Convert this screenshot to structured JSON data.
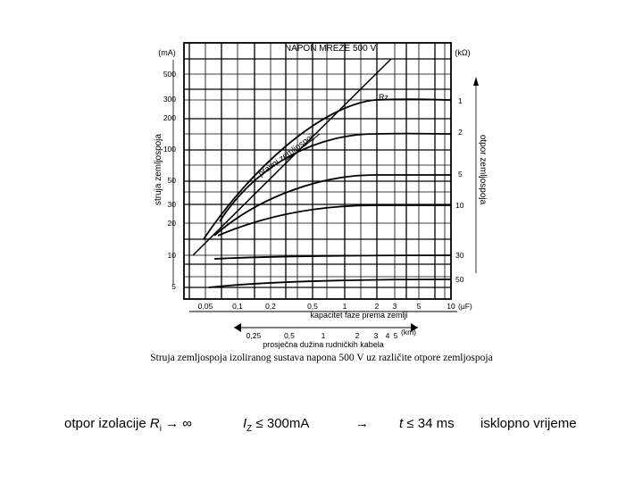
{
  "figure": {
    "top_title": "NAPON MREŽE 500 V",
    "left_unit": "(mA)",
    "right_unit": "(kΩ)",
    "left_axis_label": "struja zemljospoja",
    "right_axis_label": "otpor zemljospoja",
    "diagonal_label": "pravni zemljospoj",
    "rz_label": "Rz",
    "cap_axis_label": "kapacitet faze prema zemlji",
    "cap_unit": "(μF)",
    "km_axis_label": "prosječna dužina rudničkih kabela",
    "km_unit": "(km)",
    "left_ticks": [
      "500",
      "300",
      "200",
      "100",
      "50",
      "30",
      "20",
      "10",
      "5"
    ],
    "right_ticks": [
      "1",
      "2",
      "5",
      "10",
      "30",
      "50"
    ],
    "cap_ticks": [
      "0,05",
      "0,1",
      "0,2",
      "0,5",
      "1",
      "2",
      "3",
      "5",
      "10"
    ],
    "km_ticks": [
      "0,25",
      "0,5",
      "1",
      "2",
      "3",
      "4",
      "5"
    ]
  },
  "caption": "Struja zemljospoja izoliranog sustava napona 500 V uz različite otpore zemljospoja",
  "bottom": {
    "insulation_text": "otpor izolacije ",
    "r_symbol": "R",
    "r_sub": "i",
    "arrow1": "→ ∞",
    "i_symbol": "I",
    "i_sub": "Z",
    "current_limit": " ≤  300mA",
    "arrow2": "→",
    "t_symbol": "t",
    "time_limit": " ≤  34 ms",
    "trip_label": "isklopno vrijeme"
  }
}
